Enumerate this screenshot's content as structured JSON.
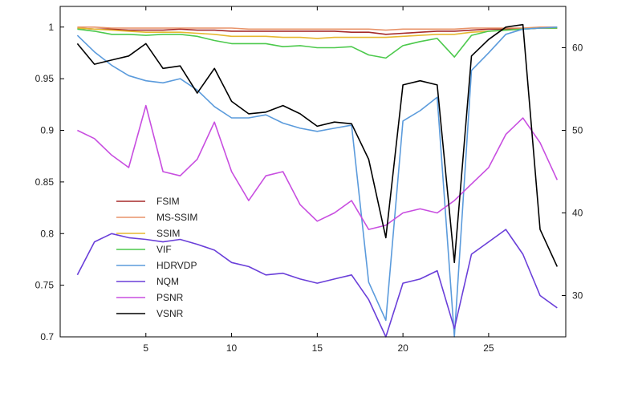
{
  "chart_data": {
    "type": "line",
    "title": "",
    "xlabel": "",
    "ylabel": "",
    "xlim": [
      0,
      29.5
    ],
    "ylim": [
      0.7,
      1.02
    ],
    "y2lim": [
      25,
      65
    ],
    "x_ticks": [
      5,
      10,
      15,
      20,
      25
    ],
    "y_ticks": [
      0.7,
      0.75,
      0.8,
      0.85,
      0.9,
      0.95,
      1
    ],
    "y2_ticks": [
      30,
      40,
      50,
      60
    ],
    "grid": false,
    "legend_position": "center-left",
    "x": [
      1,
      2,
      3,
      4,
      5,
      6,
      7,
      8,
      9,
      10,
      11,
      12,
      13,
      14,
      15,
      16,
      17,
      18,
      19,
      20,
      21,
      22,
      23,
      24,
      25,
      26,
      27,
      28,
      29
    ],
    "series": [
      {
        "name": "FSIM",
        "color": "#a52a2a",
        "axis": "left",
        "values": [
          0.999,
          0.998,
          0.998,
          0.997,
          0.997,
          0.997,
          0.998,
          0.997,
          0.997,
          0.996,
          0.996,
          0.996,
          0.996,
          0.996,
          0.996,
          0.996,
          0.995,
          0.995,
          0.993,
          0.994,
          0.995,
          0.996,
          0.996,
          0.997,
          0.998,
          0.998,
          0.998,
          0.999,
          0.999
        ]
      },
      {
        "name": "MS-SSIM",
        "color": "#e8946a",
        "axis": "left",
        "values": [
          1.0,
          1.0,
          0.999,
          0.999,
          0.999,
          0.999,
          0.999,
          0.999,
          0.999,
          0.999,
          0.998,
          0.998,
          0.998,
          0.998,
          0.998,
          0.998,
          0.998,
          0.998,
          0.997,
          0.998,
          0.998,
          0.998,
          0.998,
          0.999,
          0.999,
          0.999,
          0.999,
          1.0,
          1.0
        ]
      },
      {
        "name": "SSIM",
        "color": "#e6b830",
        "axis": "left",
        "values": [
          0.999,
          0.998,
          0.997,
          0.996,
          0.995,
          0.995,
          0.995,
          0.994,
          0.993,
          0.991,
          0.991,
          0.991,
          0.99,
          0.99,
          0.989,
          0.99,
          0.99,
          0.99,
          0.99,
          0.991,
          0.992,
          0.993,
          0.993,
          0.995,
          0.996,
          0.997,
          0.998,
          0.999,
          0.999
        ]
      },
      {
        "name": "VIF",
        "color": "#4cc94c",
        "axis": "left",
        "values": [
          0.998,
          0.996,
          0.993,
          0.993,
          0.992,
          0.993,
          0.993,
          0.991,
          0.987,
          0.984,
          0.984,
          0.984,
          0.981,
          0.982,
          0.98,
          0.98,
          0.981,
          0.973,
          0.97,
          0.982,
          0.986,
          0.989,
          0.971,
          0.992,
          0.996,
          0.997,
          0.998,
          0.999,
          0.999
        ]
      },
      {
        "name": "HDRVDP",
        "color": "#5b9bdc",
        "axis": "left",
        "values": [
          0.992,
          0.976,
          0.963,
          0.953,
          0.948,
          0.946,
          0.95,
          0.939,
          0.923,
          0.912,
          0.912,
          0.915,
          0.907,
          0.902,
          0.899,
          0.902,
          0.905,
          0.753,
          0.716,
          0.909,
          0.919,
          0.932,
          0.7,
          0.958,
          0.975,
          0.993,
          0.998,
          0.999,
          1.0
        ]
      },
      {
        "name": "NQM",
        "color": "#6a3fd9",
        "axis": "right",
        "values": [
          32.5,
          36.5,
          37.5,
          37.0,
          36.8,
          36.5,
          36.8,
          36.2,
          35.5,
          34.0,
          33.5,
          32.5,
          32.7,
          32.0,
          31.5,
          32.0,
          32.5,
          29.5,
          25.0,
          31.5,
          32.0,
          33.0,
          26.0,
          35.0,
          36.5,
          38.0,
          35.0,
          30.0,
          28.5
        ]
      },
      {
        "name": "PSNR",
        "color": "#c84ee0",
        "axis": "right",
        "values": [
          50.0,
          49.0,
          47.0,
          45.5,
          53.0,
          45.0,
          44.5,
          46.5,
          51.0,
          45.0,
          41.5,
          44.5,
          45.0,
          41.0,
          39.0,
          40.0,
          41.5,
          38.0,
          38.5,
          40.0,
          40.5,
          40.0,
          41.5,
          43.5,
          45.5,
          49.5,
          51.5,
          48.5,
          44.0
        ]
      },
      {
        "name": "VSNR",
        "color": "#000000",
        "axis": "right",
        "values": [
          60.5,
          58.0,
          58.5,
          59.0,
          60.5,
          57.5,
          57.8,
          54.5,
          57.5,
          53.5,
          52.0,
          52.2,
          53.0,
          52.0,
          50.5,
          51.0,
          50.8,
          46.5,
          37.0,
          55.5,
          56.0,
          55.5,
          34.0,
          59.0,
          61.0,
          62.5,
          62.8,
          38.0,
          33.5
        ]
      }
    ]
  }
}
